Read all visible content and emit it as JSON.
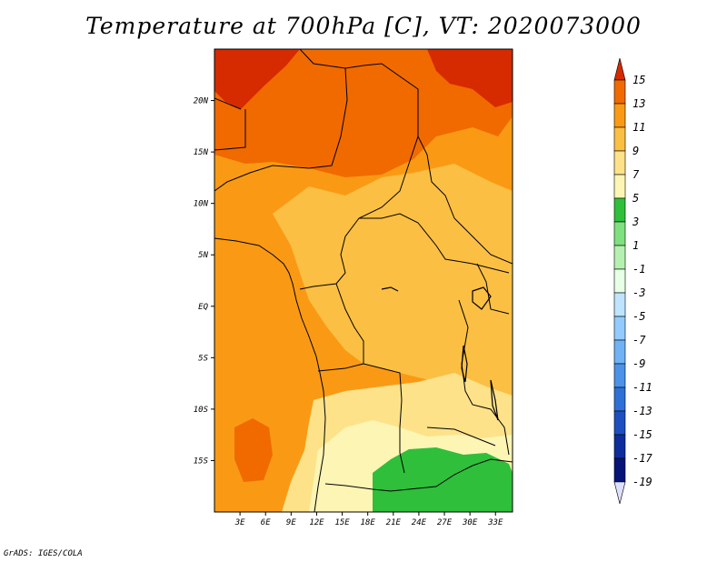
{
  "title": "Temperature at 700hPa [C], VT: 2020073000",
  "credit": "GrADS: IGES/COLA",
  "map": {
    "variable": "Temperature",
    "level": "700hPa",
    "units": "C",
    "valid_time": "2020073000",
    "lon_range": [
      0,
      35
    ],
    "lat_range": [
      -20,
      25
    ],
    "x_ticks": [
      {
        "lon": 3,
        "label": "3E"
      },
      {
        "lon": 6,
        "label": "6E"
      },
      {
        "lon": 9,
        "label": "9E"
      },
      {
        "lon": 12,
        "label": "12E"
      },
      {
        "lon": 15,
        "label": "15E"
      },
      {
        "lon": 18,
        "label": "18E"
      },
      {
        "lon": 21,
        "label": "21E"
      },
      {
        "lon": 24,
        "label": "24E"
      },
      {
        "lon": 27,
        "label": "27E"
      },
      {
        "lon": 30,
        "label": "30E"
      },
      {
        "lon": 33,
        "label": "33E"
      }
    ],
    "y_ticks": [
      {
        "lat": 20,
        "label": "20N"
      },
      {
        "lat": 15,
        "label": "15N"
      },
      {
        "lat": 10,
        "label": "10N"
      },
      {
        "lat": 5,
        "label": "5N"
      },
      {
        "lat": 0,
        "label": "EQ"
      },
      {
        "lat": -5,
        "label": "5S"
      },
      {
        "lat": -10,
        "label": "10S"
      },
      {
        "lat": -15,
        "label": "15S"
      }
    ]
  },
  "colorbar": {
    "levels": [
      "15",
      "13",
      "11",
      "9",
      "7",
      "5",
      "3",
      "1",
      "-1",
      "-3",
      "-5",
      "-7",
      "-9",
      "-11",
      "-13",
      "-15",
      "-17",
      "-19"
    ],
    "colors": [
      "#d62a00",
      "#f06a00",
      "#fa9a14",
      "#fbbf43",
      "#fde28a",
      "#fdf5b4",
      "#2fbf3b",
      "#7fe07f",
      "#b5f0b0",
      "#e6ffe6",
      "#bfe4ff",
      "#93cbff",
      "#6fb2f5",
      "#4b92e8",
      "#2f6fd8",
      "#1e4fc0",
      "#0d2d9c",
      "#061478"
    ],
    "top_cap_color": "#d62a00",
    "bottom_cap_color": "#dde0ff"
  },
  "colors": {
    "frame": "#000000",
    "background": "#ffffff"
  }
}
